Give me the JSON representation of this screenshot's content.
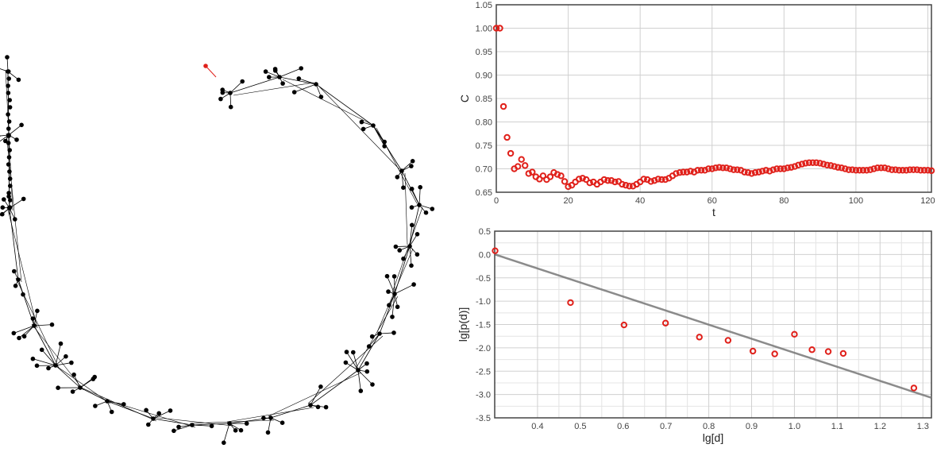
{
  "network_graph": {
    "highlight_color": "#e0201a",
    "node_color": "#000000",
    "edge_color": "#000000"
  },
  "chart_data": [
    {
      "type": "scatter",
      "xlabel": "t",
      "ylabel": "C",
      "xlim": [
        0,
        121
      ],
      "ylim": [
        0.65,
        1.05
      ],
      "x_ticks": [
        0,
        20,
        40,
        60,
        80,
        100,
        120
      ],
      "y_ticks": [
        0.65,
        0.7,
        0.75,
        0.8,
        0.85,
        0.9,
        0.95,
        1.0,
        1.05
      ],
      "y_tick_labels": [
        "0.65",
        "0.70",
        "0.75",
        "0.80",
        "0.85",
        "0.90",
        "0.95",
        "1.00",
        "1.05"
      ],
      "grid": true,
      "marker": "circle-open",
      "marker_color": "#e0201a",
      "series": [
        {
          "x": [
            0,
            1,
            2,
            3,
            4,
            5,
            6,
            7,
            8,
            9,
            10,
            11,
            12,
            13,
            14,
            15,
            16,
            17,
            18,
            19,
            20,
            21,
            22,
            23,
            24,
            25,
            26,
            27,
            28,
            29,
            30,
            31,
            32,
            33,
            34,
            35,
            36,
            37,
            38,
            39,
            40,
            41,
            42,
            43,
            44,
            45,
            46,
            47,
            48,
            49,
            50,
            51,
            52,
            53,
            54,
            55,
            56,
            57,
            58,
            59,
            60,
            61,
            62,
            63,
            64,
            65,
            66,
            67,
            68,
            69,
            70,
            71,
            72,
            73,
            74,
            75,
            76,
            77,
            78,
            79,
            80,
            81,
            82,
            83,
            84,
            85,
            86,
            87,
            88,
            89,
            90,
            91,
            92,
            93,
            94,
            95,
            96,
            97,
            98,
            99,
            100,
            101,
            102,
            103,
            104,
            105,
            106,
            107,
            108,
            109,
            110,
            111,
            112,
            113,
            114,
            115,
            116,
            117,
            118,
            119,
            120,
            121
          ],
          "y": [
            1.0,
            1.0,
            0.833,
            0.767,
            0.733,
            0.7,
            0.705,
            0.72,
            0.707,
            0.69,
            0.693,
            0.683,
            0.678,
            0.685,
            0.677,
            0.683,
            0.692,
            0.688,
            0.685,
            0.673,
            0.662,
            0.665,
            0.672,
            0.678,
            0.68,
            0.677,
            0.67,
            0.672,
            0.667,
            0.672,
            0.677,
            0.675,
            0.675,
            0.672,
            0.673,
            0.667,
            0.665,
            0.663,
            0.663,
            0.667,
            0.672,
            0.678,
            0.677,
            0.673,
            0.675,
            0.678,
            0.677,
            0.677,
            0.68,
            0.685,
            0.69,
            0.692,
            0.693,
            0.693,
            0.695,
            0.693,
            0.697,
            0.697,
            0.697,
            0.7,
            0.7,
            0.702,
            0.703,
            0.702,
            0.702,
            0.7,
            0.698,
            0.698,
            0.697,
            0.693,
            0.692,
            0.69,
            0.692,
            0.693,
            0.695,
            0.697,
            0.695,
            0.698,
            0.7,
            0.7,
            0.7,
            0.702,
            0.703,
            0.705,
            0.708,
            0.71,
            0.712,
            0.713,
            0.713,
            0.713,
            0.712,
            0.71,
            0.708,
            0.707,
            0.705,
            0.703,
            0.702,
            0.7,
            0.698,
            0.698,
            0.697,
            0.697,
            0.697,
            0.697,
            0.698,
            0.7,
            0.702,
            0.702,
            0.702,
            0.7,
            0.698,
            0.698,
            0.697,
            0.697,
            0.697,
            0.698,
            0.698,
            0.698,
            0.697,
            0.697,
            0.697,
            0.696
          ]
        }
      ]
    },
    {
      "type": "scatter",
      "xlabel": "lg[d]",
      "ylabel": "lg[p(d)]",
      "xlim": [
        0.3,
        1.32
      ],
      "ylim": [
        -3.5,
        0.5
      ],
      "x_ticks": [
        0.4,
        0.5,
        0.6,
        0.7,
        0.8,
        0.9,
        1.0,
        1.1,
        1.2,
        1.3
      ],
      "x_tick_labels": [
        "0.4",
        "0.5",
        "0.6",
        "0.7",
        "0.8",
        "0.9",
        "1.0",
        "1.1",
        "1.2",
        "1.3"
      ],
      "y_ticks": [
        -3.5,
        -3.0,
        -2.5,
        -2.0,
        -1.5,
        -1.0,
        -0.5,
        0.0,
        0.5
      ],
      "y_tick_labels": [
        "-3.5",
        "-3.0",
        "-2.5",
        "-2.0",
        "-1.5",
        "-1.0",
        "-0.5",
        "0.0",
        "0.5"
      ],
      "grid": true,
      "marker": "circle-open",
      "marker_color": "#e0201a",
      "fit_line_color": "#777777",
      "series": [
        {
          "x": [
            0.301,
            0.477,
            0.602,
            0.699,
            0.778,
            0.845,
            0.903,
            0.954,
            1.0,
            1.041,
            1.079,
            1.114,
            1.279
          ],
          "y": [
            0.08,
            -1.03,
            -1.51,
            -1.47,
            -1.77,
            -1.84,
            -2.07,
            -2.13,
            -1.71,
            -2.04,
            -2.08,
            -2.12,
            -2.86
          ]
        }
      ],
      "fit_line": {
        "x": [
          0.301,
          1.32
        ],
        "y": [
          0.0,
          -3.07
        ]
      }
    }
  ]
}
